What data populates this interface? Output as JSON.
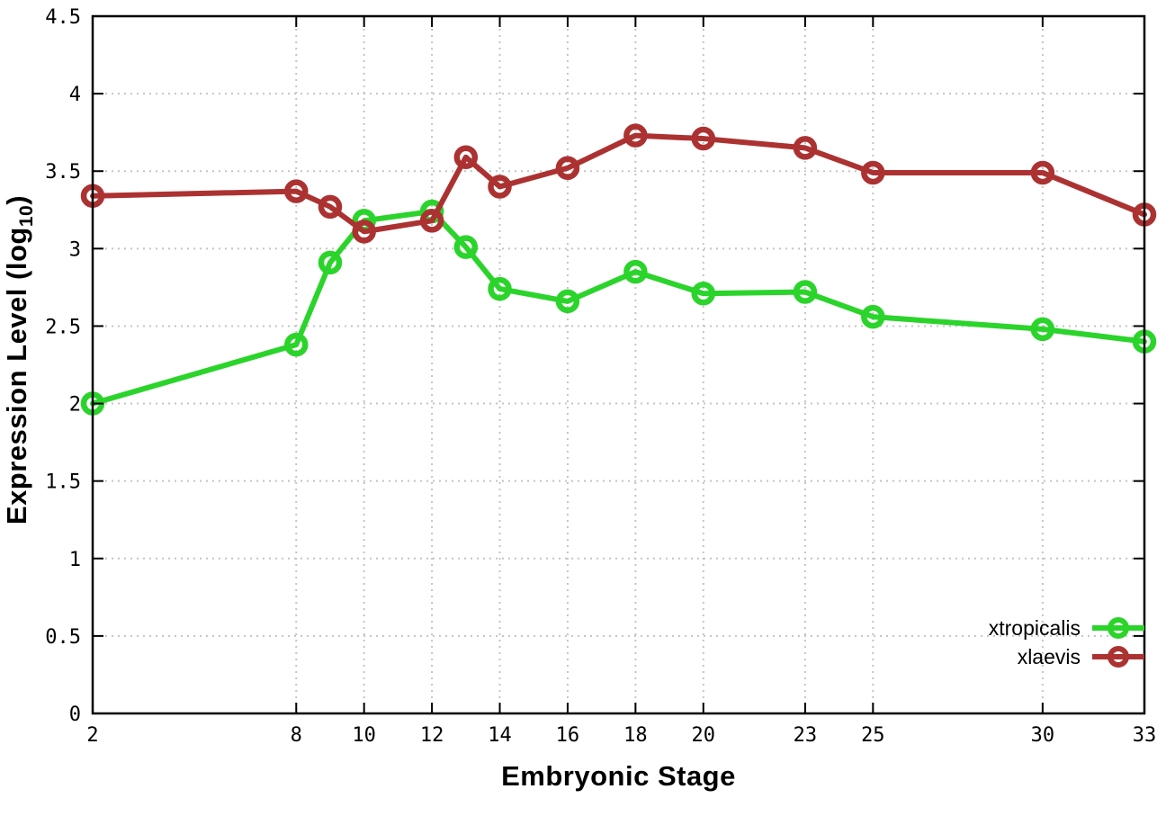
{
  "chart_data": {
    "type": "line",
    "title": "",
    "xlabel": "Embryonic Stage",
    "ylabel": {
      "pre": "Expression Level (log",
      "sub": "10",
      "post": ")"
    },
    "xlim": [
      2,
      33
    ],
    "ylim": [
      0,
      4.5
    ],
    "x_ticks": [
      2,
      8,
      10,
      12,
      14,
      16,
      18,
      20,
      23,
      25,
      30,
      33
    ],
    "y_ticks": [
      0,
      0.5,
      1,
      1.5,
      2,
      2.5,
      3,
      3.5,
      4,
      4.5
    ],
    "grid": true,
    "legend_position": "inside bottom-right",
    "x": [
      2,
      8,
      9,
      10,
      12,
      13,
      14,
      16,
      18,
      20,
      23,
      25,
      30,
      33
    ],
    "series": [
      {
        "name": "xtropicalis",
        "color": "#2bd42b",
        "values": [
          2.0,
          2.38,
          2.91,
          3.18,
          3.24,
          3.01,
          2.74,
          2.66,
          2.85,
          2.71,
          2.72,
          2.56,
          2.48,
          2.4
        ]
      },
      {
        "name": "xlaevis",
        "color": "#ac3232",
        "values": [
          3.34,
          3.37,
          3.27,
          3.11,
          3.18,
          3.59,
          3.4,
          3.52,
          3.73,
          3.71,
          3.65,
          3.49,
          3.49,
          3.22
        ]
      }
    ],
    "colors": {
      "grid": "#c4c4c4",
      "border": "#000000",
      "tick_text": "#000000"
    }
  }
}
